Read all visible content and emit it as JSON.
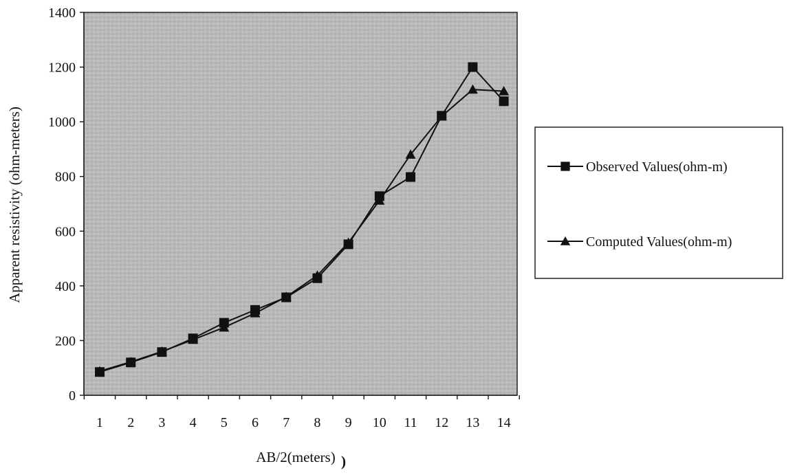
{
  "chart_data": {
    "type": "line",
    "title": "",
    "xlabel": "AB/2(meters)",
    "ylabel": "Apparent resistivity (ohm-meters)",
    "x": [
      1,
      2,
      3,
      4,
      5,
      6,
      7,
      8,
      9,
      10,
      11,
      12,
      13,
      14
    ],
    "x_tick_labels": [
      "1",
      "2",
      "3",
      "4",
      "5",
      "6",
      "7",
      "8",
      "9",
      "10",
      "11",
      "12",
      "13",
      "14"
    ],
    "y_ticks": [
      0,
      200,
      400,
      600,
      800,
      1000,
      1200,
      1400
    ],
    "y_tick_labels": [
      "0",
      "200",
      "400",
      "600",
      "800",
      "1000",
      "1200",
      "1400"
    ],
    "ylim": [
      0,
      1400
    ],
    "grid": false,
    "legend_position": "right",
    "series": [
      {
        "name": "Observed Values(ohm-m)",
        "marker": "square",
        "color": "#111111",
        "values": [
          85,
          120,
          158,
          208,
          265,
          312,
          358,
          428,
          552,
          728,
          798,
          1022,
          1200,
          1075
        ]
      },
      {
        "name": "Computed Values(ohm-m)",
        "marker": "triangle",
        "color": "#111111",
        "values": [
          88,
          122,
          160,
          203,
          248,
          300,
          360,
          438,
          558,
          712,
          880,
          1020,
          1118,
          1112
        ]
      }
    ],
    "plot_background": "#b8b8b8"
  }
}
